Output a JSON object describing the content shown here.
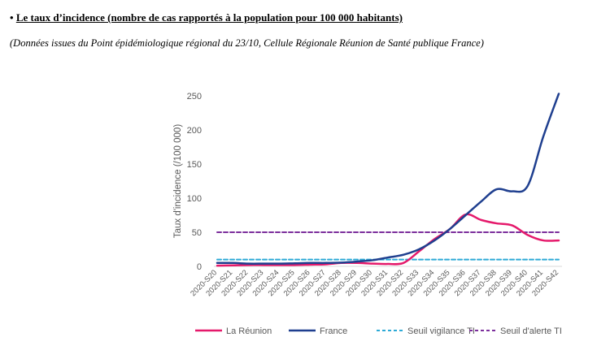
{
  "header": {
    "bullet": "•",
    "title": "Le taux d’incidence (nombre de cas rapportés à la population pour 100 000 habitants)",
    "source": "(Données issues du Point épidémiologique régional du 23/10, Cellule Régionale Réunion de Santé publique France)"
  },
  "chart_data": {
    "type": "line",
    "ylabel": "Taux d'incidence (/100 000)",
    "ylim": [
      0,
      250
    ],
    "yticks": [
      0,
      50,
      100,
      150,
      200,
      250
    ],
    "grid": false,
    "legend_position": "bottom",
    "categories": [
      "2020-S20",
      "2020-S21",
      "2020-S22",
      "2020-S23",
      "2020-S24",
      "2020-S25",
      "2020-S26",
      "2020-S27",
      "2020-S28",
      "2020-S29",
      "2020-S30",
      "2020-S31",
      "2020-S32",
      "2020-S33",
      "2020-S34",
      "2020-S35",
      "2020-S36",
      "2020-S37",
      "2020-S38",
      "2020-S39",
      "2020-S40",
      "2020-S41",
      "2020-S42"
    ],
    "series": [
      {
        "name": "La Réunion",
        "color": "#e5196b",
        "dash": "solid",
        "values": [
          1,
          1.5,
          2,
          2,
          2,
          2,
          2.5,
          3,
          5,
          5,
          4,
          3.5,
          5,
          22,
          40,
          55,
          76,
          68,
          63,
          60,
          46,
          38,
          38
        ]
      },
      {
        "name": "France",
        "color": "#1f3f8f",
        "dash": "solid",
        "values": [
          5,
          5,
          4,
          4,
          4,
          4.5,
          5,
          5,
          5.5,
          7,
          9,
          13,
          17,
          25,
          38,
          55,
          75,
          95,
          113,
          110,
          118,
          190,
          253
        ]
      },
      {
        "name": "Seuil vigilance TI",
        "color": "#2eaad6",
        "dash": "dashed",
        "values": [
          10,
          10,
          10,
          10,
          10,
          10,
          10,
          10,
          10,
          10,
          10,
          10,
          10,
          10,
          10,
          10,
          10,
          10,
          10,
          10,
          10,
          10,
          10
        ]
      },
      {
        "name": "Seuil d'alerte TI",
        "color": "#7c2f9c",
        "dash": "dashed",
        "values": [
          50,
          50,
          50,
          50,
          50,
          50,
          50,
          50,
          50,
          50,
          50,
          50,
          50,
          50,
          50,
          50,
          50,
          50,
          50,
          50,
          50,
          50,
          50
        ]
      }
    ]
  }
}
